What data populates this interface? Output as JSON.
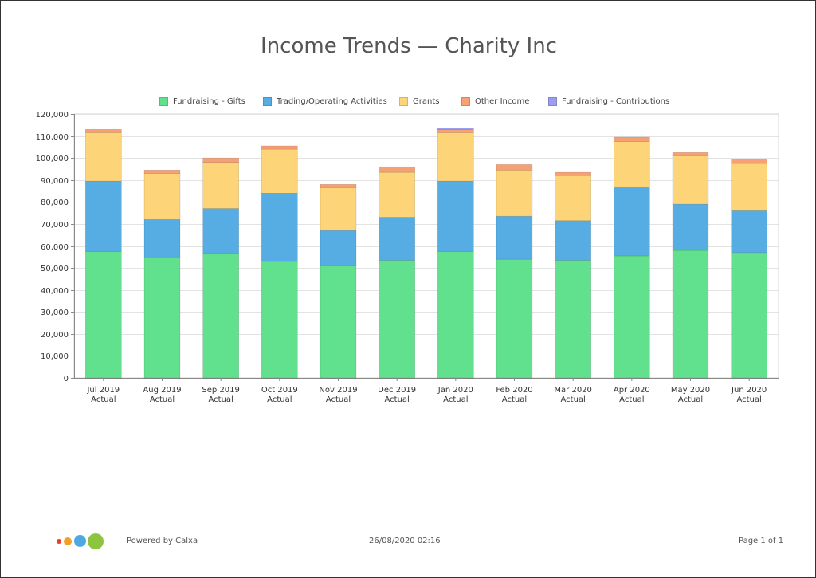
{
  "title": "Income Trends — Charity Inc",
  "footer": {
    "powered_by": "Powered by Calxa",
    "timestamp": "26/08/2020 02:16",
    "page": "Page 1 of 1"
  },
  "logo_colors": [
    "#e8402a",
    "#f5a023",
    "#4fa8e0",
    "#8cc63f"
  ],
  "chart_data": {
    "type": "bar",
    "stacked": true,
    "title": "Income Trends — Charity Inc",
    "xlabel": "",
    "ylabel": "",
    "ylim": [
      0,
      120000
    ],
    "y_ticks": [
      0,
      10000,
      20000,
      30000,
      40000,
      50000,
      60000,
      70000,
      80000,
      90000,
      100000,
      110000,
      120000
    ],
    "y_tick_labels": [
      "0",
      "10,000",
      "20,000",
      "30,000",
      "40,000",
      "50,000",
      "60,000",
      "70,000",
      "80,000",
      "90,000",
      "100,000",
      "110,000",
      "120,000"
    ],
    "grid": true,
    "legend_position": "top",
    "categories": [
      [
        "Jul 2019",
        "Actual"
      ],
      [
        "Aug 2019",
        "Actual"
      ],
      [
        "Sep 2019",
        "Actual"
      ],
      [
        "Oct 2019",
        "Actual"
      ],
      [
        "Nov 2019",
        "Actual"
      ],
      [
        "Dec 2019",
        "Actual"
      ],
      [
        "Jan 2020",
        "Actual"
      ],
      [
        "Feb 2020",
        "Actual"
      ],
      [
        "Mar 2020",
        "Actual"
      ],
      [
        "Apr 2020",
        "Actual"
      ],
      [
        "May 2020",
        "Actual"
      ],
      [
        "Jun 2020",
        "Actual"
      ]
    ],
    "series": [
      {
        "name": "Fundraising - Gifts",
        "color": "#61e08e",
        "values": [
          57500,
          54500,
          56500,
          53000,
          51000,
          53500,
          57500,
          54000,
          53500,
          55500,
          58000,
          57000
        ]
      },
      {
        "name": "Trading/Operating Activities",
        "color": "#56ade4",
        "values": [
          32000,
          17500,
          20500,
          31000,
          16000,
          19500,
          32000,
          19500,
          18000,
          31000,
          21000,
          19000
        ]
      },
      {
        "name": "Grants",
        "color": "#fdd477",
        "values": [
          22000,
          21000,
          21000,
          20000,
          19500,
          20500,
          22000,
          21000,
          20500,
          21000,
          22000,
          21500
        ]
      },
      {
        "name": "Other Income",
        "color": "#f6a074",
        "values": [
          1500,
          1500,
          2000,
          1500,
          1500,
          2500,
          1500,
          2500,
          1500,
          2000,
          1500,
          2000
        ]
      },
      {
        "name": "Fundraising - Contributions",
        "color": "#9b9ef0",
        "values": [
          0,
          0,
          0,
          0,
          0,
          0,
          600,
          0,
          0,
          0,
          0,
          0
        ]
      }
    ]
  }
}
